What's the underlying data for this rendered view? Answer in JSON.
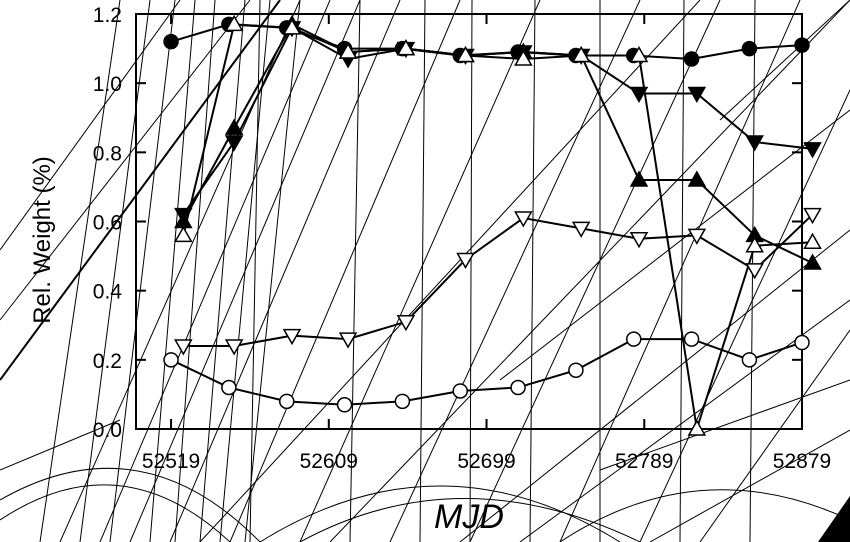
{
  "chart_data": {
    "type": "line",
    "title": "",
    "xlabel": "MJD",
    "ylabel": "Rel. Weight (%)",
    "xlim": [
      52499,
      52879
    ],
    "ylim": [
      0.0,
      1.2
    ],
    "xticks": [
      52519,
      52609,
      52699,
      52789,
      52879
    ],
    "yticks": [
      0.0,
      0.2,
      0.4,
      0.6,
      0.8,
      1.0,
      1.2
    ],
    "ytick_labels": [
      "0.0",
      "0.2",
      "0.4",
      "0.6",
      "0.8",
      "1.0",
      "1.2"
    ],
    "grid": false,
    "series": [
      {
        "marker": "filled-circle",
        "x": [
          52519,
          52552,
          52585,
          52618,
          52651,
          52684,
          52717,
          52750,
          52783,
          52816,
          52849,
          52879
        ],
        "y": [
          1.12,
          1.17,
          1.16,
          1.1,
          1.1,
          1.08,
          1.09,
          1.08,
          1.08,
          1.07,
          1.1,
          1.11
        ]
      },
      {
        "marker": "filled-triangle-down",
        "x": [
          52526,
          52555,
          52588,
          52620,
          52653,
          52687,
          52720,
          52753,
          52786,
          52819,
          52852,
          52885
        ],
        "y": [
          0.62,
          0.83,
          1.16,
          1.07,
          1.1,
          1.08,
          1.09,
          1.08,
          0.97,
          0.97,
          0.83,
          0.81
        ]
      },
      {
        "marker": "filled-triangle-up",
        "x": [
          52526,
          52555,
          52588,
          52620,
          52653,
          52687,
          52720,
          52753,
          52786,
          52819,
          52852,
          52885
        ],
        "y": [
          0.6,
          0.87,
          1.17,
          1.09,
          1.1,
          1.08,
          1.09,
          1.08,
          0.72,
          0.72,
          0.56,
          0.48
        ]
      },
      {
        "marker": "open-triangle-up",
        "x": [
          52526,
          52555,
          52588,
          52620,
          52653,
          52687,
          52720,
          52753,
          52786,
          52819,
          52852,
          52885
        ],
        "y": [
          0.56,
          1.17,
          1.16,
          1.09,
          1.1,
          1.08,
          1.07,
          1.08,
          1.08,
          0.0,
          0.53,
          0.54
        ]
      },
      {
        "marker": "open-triangle-down",
        "x": [
          52526,
          52555,
          52588,
          52620,
          52653,
          52687,
          52720,
          52753,
          52786,
          52819,
          52852,
          52885
        ],
        "y": [
          0.24,
          0.24,
          0.27,
          0.26,
          0.31,
          0.49,
          0.61,
          0.58,
          0.55,
          0.56,
          0.46,
          0.62
        ]
      },
      {
        "marker": "open-circle",
        "x": [
          52519,
          52552,
          52585,
          52618,
          52651,
          52684,
          52717,
          52750,
          52783,
          52816,
          52849,
          52879
        ],
        "y": [
          0.2,
          0.12,
          0.08,
          0.07,
          0.08,
          0.11,
          0.12,
          0.17,
          0.26,
          0.26,
          0.2,
          0.25
        ]
      }
    ]
  }
}
